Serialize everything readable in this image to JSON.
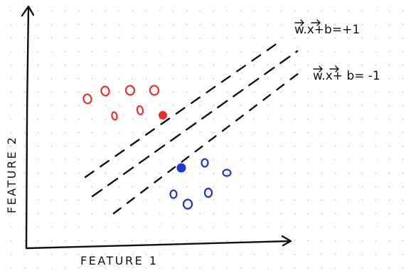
{
  "axes": {
    "x_label": "FEATURE 1",
    "y_label": "FEATURE 2"
  },
  "hyperplanes": {
    "upper_margin_label": "w.x+b=+1",
    "lower_margin_label": "w.x+ b= -1"
  },
  "classes": {
    "class_a": {
      "color": "#e8302a",
      "point_count": 7,
      "support_vectors": 1
    },
    "class_b": {
      "color": "#1f35d8",
      "point_count": 5,
      "support_vectors": 1
    }
  },
  "colors": {
    "ink": "#111111",
    "dot_grid": "#d3d3d3"
  }
}
